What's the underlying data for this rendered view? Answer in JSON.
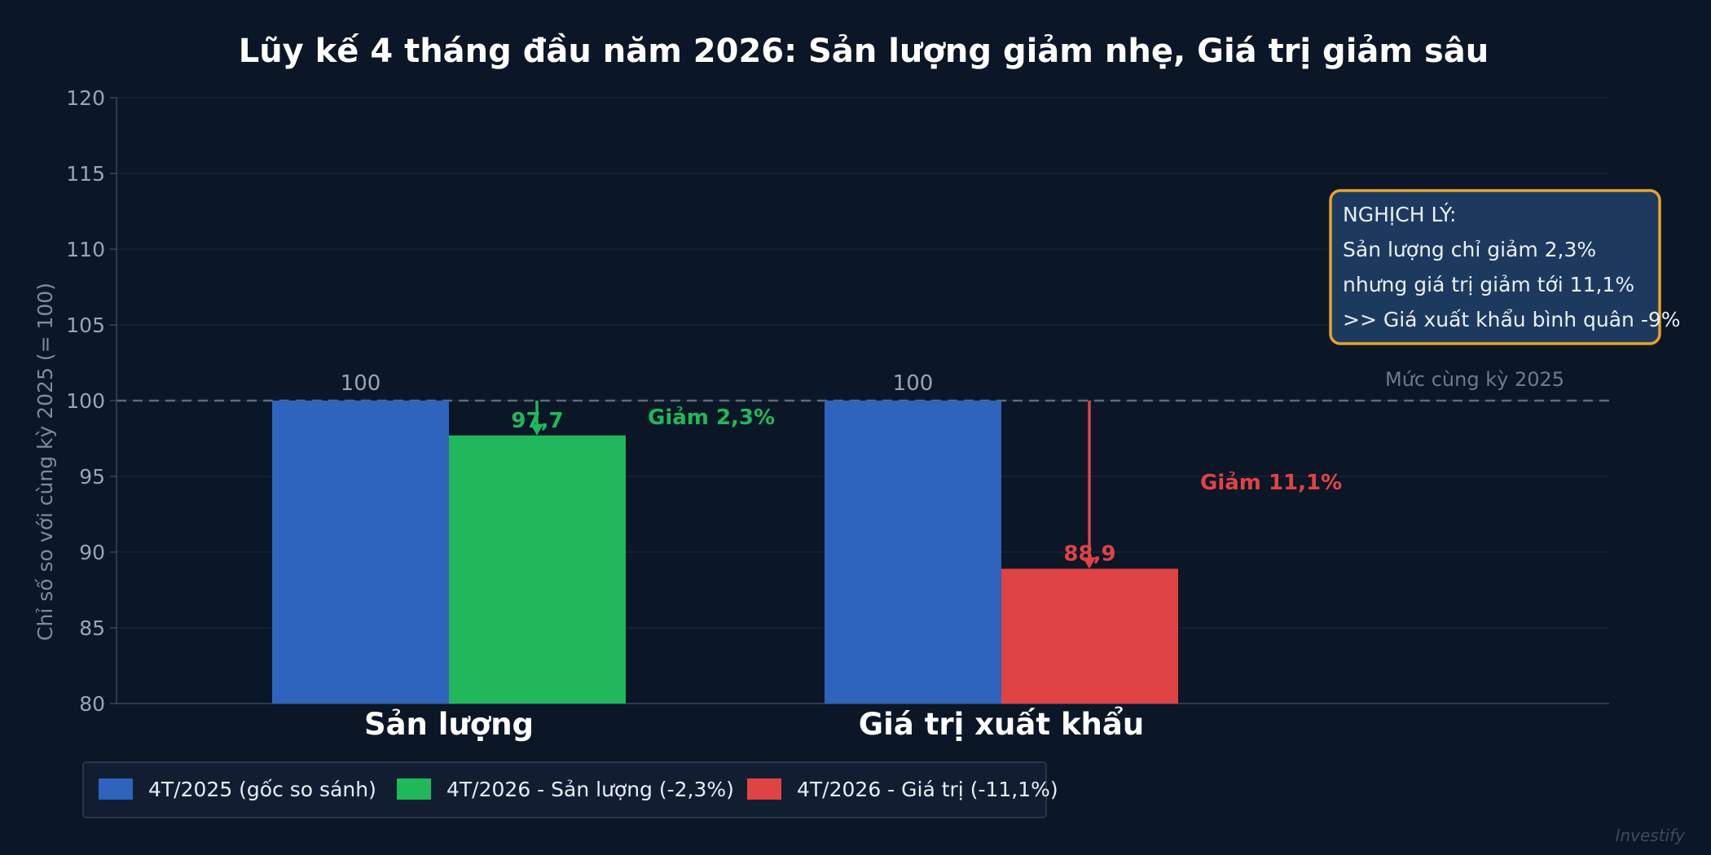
{
  "chart_data": {
    "type": "bar",
    "title": "Lũy kế 4 tháng đầu năm 2026: Sản lượng giảm nhẹ, Giá trị giảm sâu",
    "ylabel": "Chỉ số so với cùng kỳ 2025 (= 100)",
    "xlabel": "",
    "ylim": [
      80,
      120
    ],
    "yticks": [
      80,
      85,
      90,
      95,
      100,
      105,
      110,
      115,
      120
    ],
    "grid": true,
    "categories": [
      "Sản lượng",
      "Giá trị xuất khẩu"
    ],
    "bars": [
      {
        "category": "Sản lượng",
        "series": "4T/2025 (gốc so sánh)",
        "value": 100,
        "label": "100",
        "color": "#2e63be"
      },
      {
        "category": "Sản lượng",
        "series": "4T/2026 - Sản lượng (-2,3%)",
        "value": 97.7,
        "label": "97,7",
        "color": "#21b85c"
      },
      {
        "category": "Giá trị xuất khẩu",
        "series": "4T/2025 (gốc so sánh)",
        "value": 100,
        "label": "100",
        "color": "#2e63be"
      },
      {
        "category": "Giá trị xuất khẩu",
        "series": "4T/2026 - Giá trị (-11,1%)",
        "value": 88.9,
        "label": "88,9",
        "color": "#e04344"
      }
    ],
    "legend": {
      "placement": "bottom-left",
      "entries": [
        {
          "label": "4T/2025 (gốc so sánh)",
          "color": "#2e63be"
        },
        {
          "label": "4T/2026 - Sản lượng (-2,3%)",
          "color": "#21b85c"
        },
        {
          "label": "4T/2026 - Giá trị (-11,1%)",
          "color": "#e04344"
        }
      ]
    },
    "reference_line": {
      "value": 100,
      "label": "Mức cùng kỳ 2025"
    },
    "annotations": [
      {
        "text": "Giảm 2,3%",
        "color": "#21b85c",
        "from": 100,
        "to": 97.7
      },
      {
        "text": "Giảm 11,1%",
        "color": "#e04344",
        "from": 100,
        "to": 88.9
      }
    ],
    "note_box": {
      "lines": [
        "NGHỊCH LÝ:",
        "Sản lượng chỉ giảm 2,3%",
        "nhưng giá trị giảm tới 11,1%",
        ">> Giá xuất khẩu bình quân -9%"
      ],
      "border_color": "#e8a22c",
      "fill_color": "#1d3a5e"
    }
  },
  "watermark": "Investify",
  "colors": {
    "background": "#0b1627",
    "grid": "#1a2638",
    "axis": "#3a4658"
  }
}
